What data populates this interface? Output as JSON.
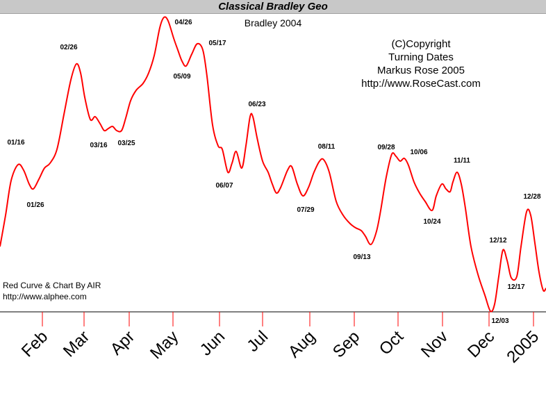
{
  "title": "Classical Bradley Geo",
  "subtitle": "Bradley 2004",
  "copyright_lines": [
    "(C)Copyright",
    "Turning Dates",
    "Markus Rose 2005",
    "http://www.RoseCast.com"
  ],
  "credit_lines": [
    "Red Curve & Chart By AIR",
    "http://www.alphee.com"
  ],
  "colors": {
    "curve": "#ff0000",
    "title_bar": "#c8c8c8",
    "axis": "#000000",
    "ticks": "#ff0000"
  },
  "chart_data": {
    "type": "line",
    "x_axis": "time",
    "month_labels": [
      "Feb",
      "Mar",
      "Apr",
      "May",
      "Jun",
      "Jul",
      "Aug",
      "Sep",
      "Oct",
      "Nov",
      "Dec",
      "2005"
    ],
    "grid": false,
    "series": [
      {
        "color": "#ff0000",
        "turning_points": [
          {
            "date": "01/16",
            "type": "high"
          },
          {
            "date": "01/26",
            "type": "low"
          },
          {
            "date": "02/26",
            "type": "high"
          },
          {
            "date": "03/16",
            "type": "low"
          },
          {
            "date": "03/25",
            "type": "low"
          },
          {
            "date": "04/26",
            "type": "high"
          },
          {
            "date": "05/09",
            "type": "low"
          },
          {
            "date": "05/17",
            "type": "high"
          },
          {
            "date": "06/07",
            "type": "low"
          },
          {
            "date": "06/23",
            "type": "high"
          },
          {
            "date": "07/29",
            "type": "low"
          },
          {
            "date": "08/11",
            "type": "high"
          },
          {
            "date": "09/13",
            "type": "low"
          },
          {
            "date": "09/28",
            "type": "high"
          },
          {
            "date": "10/06",
            "type": "high"
          },
          {
            "date": "10/24",
            "type": "low"
          },
          {
            "date": "11/11",
            "type": "high"
          },
          {
            "date": "12/03",
            "type": "low"
          },
          {
            "date": "12/12",
            "type": "high"
          },
          {
            "date": "12/17",
            "type": "low"
          },
          {
            "date": "12/28",
            "type": "high"
          }
        ]
      }
    ]
  }
}
